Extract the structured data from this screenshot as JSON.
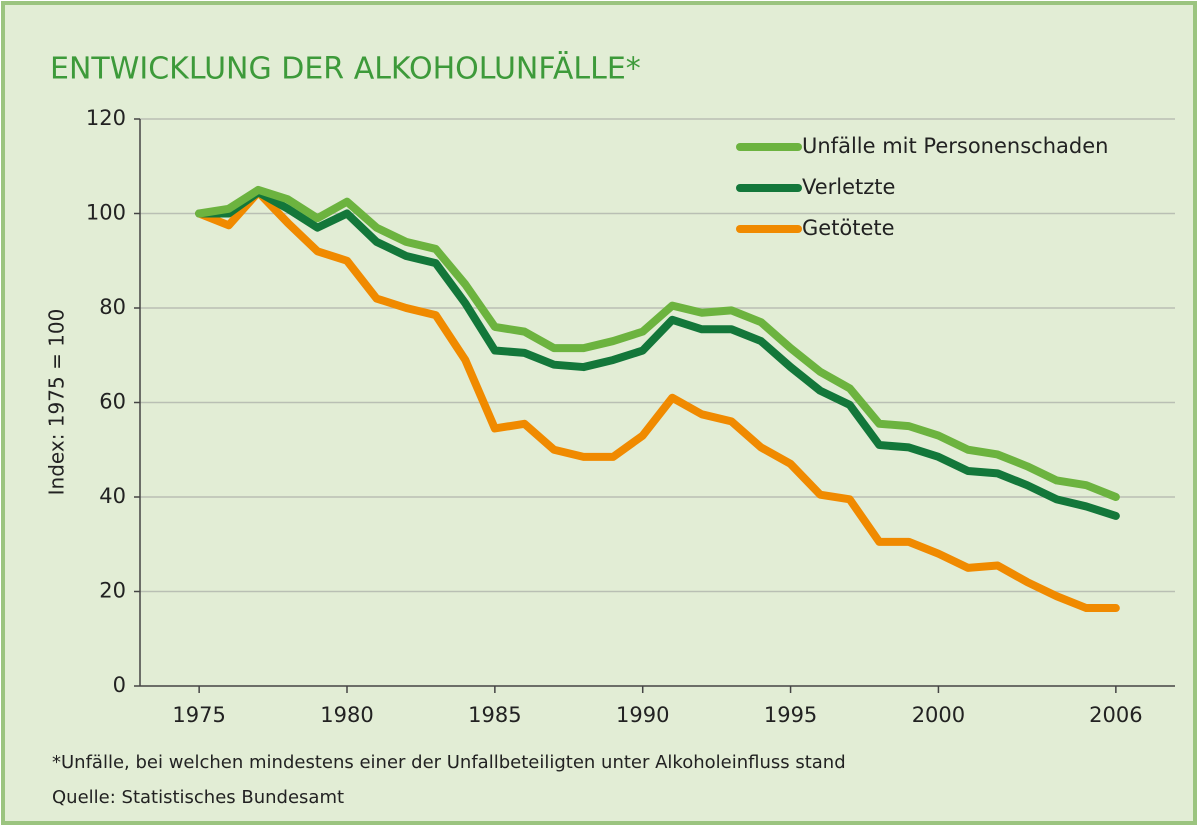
{
  "chart_data": {
    "type": "line",
    "title": "ENTWICKLUNG DER ALKOHOLUNFÄLLE*",
    "y_label": "Index: 1975 = 100",
    "footnote": "*Unfälle, bei welchen mindestens einer der Unfallbeteiligten unter Alkoholeinfluss stand",
    "source": "Quelle: Statistisches Bundesamt",
    "x": [
      1975,
      1976,
      1977,
      1978,
      1979,
      1980,
      1981,
      1982,
      1983,
      1984,
      1985,
      1986,
      1987,
      1988,
      1989,
      1990,
      1991,
      1992,
      1993,
      1994,
      1995,
      1996,
      1997,
      1998,
      1999,
      2000,
      2001,
      2002,
      2003,
      2004,
      2005,
      2006
    ],
    "series": [
      {
        "name": "Unfälle mit Personenschaden",
        "color": "#6cb33f",
        "values": [
          100,
          101,
          105,
          103,
          99,
          102.5,
          97,
          94,
          92.5,
          85,
          76,
          75,
          71.5,
          71.5,
          73,
          75,
          80.5,
          79,
          79.5,
          77,
          71.5,
          66.5,
          63,
          55.5,
          55,
          53,
          50,
          49,
          46.5,
          43.5,
          42.5,
          40
        ]
      },
      {
        "name": "Verletzte",
        "color": "#13773a",
        "values": [
          100,
          100,
          104.5,
          101,
          97,
          100,
          94,
          91,
          89.5,
          81,
          71,
          70.5,
          68,
          67.5,
          69,
          71,
          77.5,
          75.5,
          75.5,
          73,
          67.5,
          62.5,
          59.5,
          51,
          50.5,
          48.5,
          45.5,
          45,
          42.5,
          39.5,
          38,
          36
        ]
      },
      {
        "name": "Getötete",
        "color": "#f08a00",
        "values": [
          100,
          97.5,
          104.5,
          98,
          92,
          90,
          82,
          80,
          78.5,
          69,
          54.5,
          55.5,
          50,
          48.5,
          48.5,
          53,
          61,
          57.5,
          56,
          50.5,
          47,
          40.5,
          39.5,
          30.5,
          30.5,
          28,
          25,
          25.5,
          22,
          19,
          16.5,
          16.5
        ]
      }
    ],
    "xlim": [
      1973,
      2008
    ],
    "xticks": [
      1975,
      1980,
      1985,
      1990,
      1995,
      2000,
      2006
    ],
    "ylim": [
      0,
      120
    ],
    "yticks": [
      0,
      20,
      40,
      60,
      80,
      100,
      120
    ],
    "grid": true,
    "legend": "top-right"
  }
}
